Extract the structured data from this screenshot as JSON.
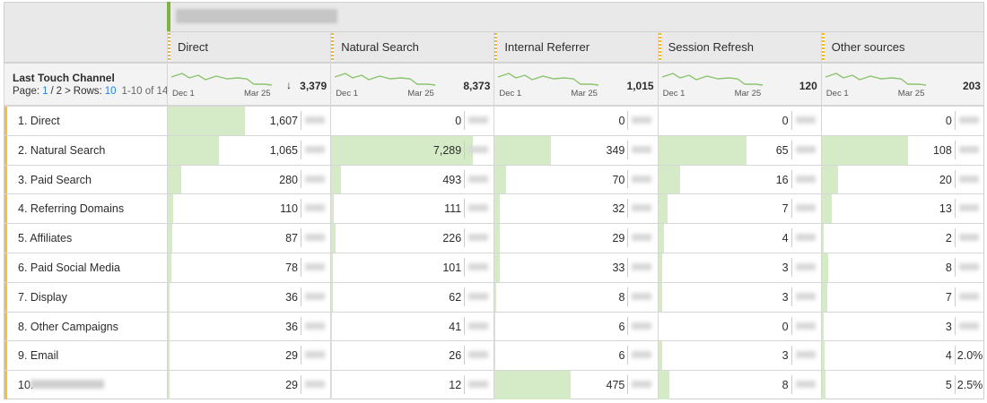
{
  "dimension": {
    "title": "Last Touch Channel",
    "page_label": "Page:",
    "page": 1,
    "page_sep": "/",
    "pages": 2,
    "rows_label": "Rows:",
    "rows": 10,
    "range": "1-10 of 14"
  },
  "sparkline_axis": {
    "start": "Dec 1",
    "end": "Mar 25"
  },
  "columns": [
    {
      "name": "Direct",
      "total": {
        "value": 3379,
        "label": "3,379"
      }
    },
    {
      "name": "Natural Search",
      "total": {
        "value": 8373,
        "label": "8,373"
      }
    },
    {
      "name": "Internal Referrer",
      "total": {
        "value": 1015,
        "label": "1,015"
      }
    },
    {
      "name": "Session Refresh",
      "total": 120
    },
    {
      "name": "Other sources",
      "total": 203
    }
  ],
  "rows": [
    {
      "label": "1. Direct",
      "cells": [
        {
          "value": 1607,
          "label": "1,607"
        },
        0,
        0,
        0,
        0
      ]
    },
    {
      "label": "2. Natural Search",
      "cells": [
        {
          "value": 1065,
          "label": "1,065"
        },
        {
          "value": 7289,
          "label": "7,289"
        },
        349,
        65,
        108
      ]
    },
    {
      "label": "3. Paid Search",
      "cells": [
        280,
        493,
        70,
        16,
        20
      ]
    },
    {
      "label": "4. Referring Domains",
      "cells": [
        110,
        111,
        32,
        7,
        13
      ]
    },
    {
      "label": "5. Affiliates",
      "cells": [
        87,
        226,
        29,
        4,
        2
      ]
    },
    {
      "label": "6. Paid Social Media",
      "cells": [
        78,
        101,
        33,
        3,
        8
      ]
    },
    {
      "label": "7. Display",
      "cells": [
        36,
        62,
        8,
        3,
        7
      ]
    },
    {
      "label": "8. Other Campaigns",
      "cells": [
        36,
        41,
        6,
        0,
        3
      ]
    },
    {
      "label": "9. Email",
      "cells": [
        29,
        26,
        6,
        3,
        4
      ],
      "percents": {
        "4": "2.0%"
      }
    },
    {
      "label": "10.",
      "cells": [
        29,
        12,
        475,
        8,
        5
      ],
      "percents": {
        "4": "2.5%"
      }
    }
  ]
}
